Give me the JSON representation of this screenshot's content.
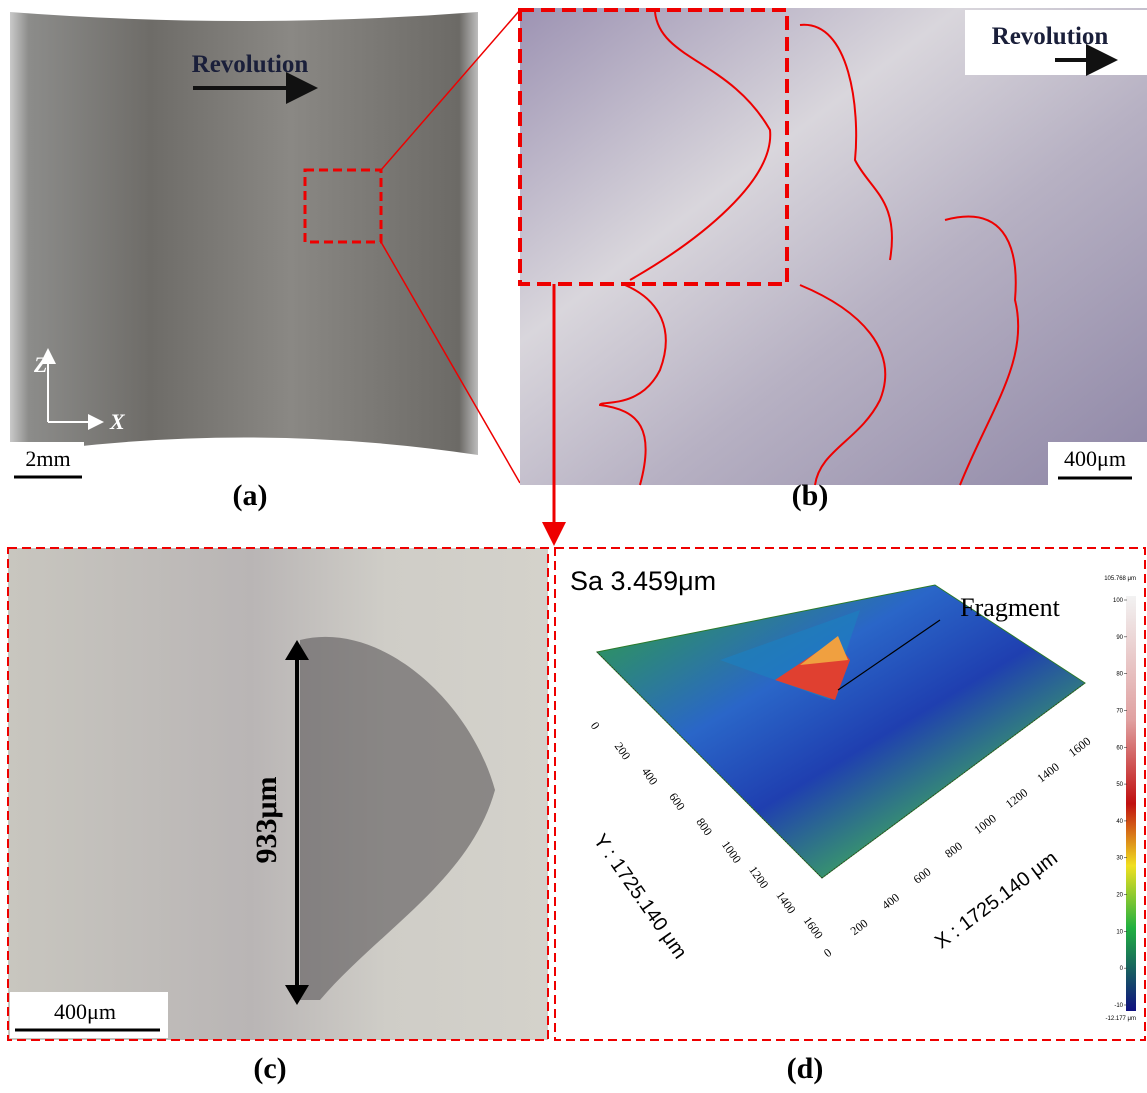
{
  "panel_a": {
    "label": "(a)",
    "arrow_text": "Revolution",
    "axis_z": "Z",
    "axis_x": "X",
    "scale_bar": "2mm"
  },
  "panel_b": {
    "label": "(b)",
    "arrow_text": "Revolution",
    "scale_bar": "400μm"
  },
  "panel_c": {
    "label": "(c)",
    "measurement": "933μm",
    "scale_bar": "400μm"
  },
  "panel_d": {
    "label": "(d)",
    "roughness": "Sa 3.459μm",
    "annotation": "Fragment",
    "x_axis": {
      "title": "X : 1725.140 μm",
      "ticks": [
        0,
        200,
        400,
        600,
        800,
        1000,
        1200,
        1400,
        1600
      ]
    },
    "y_axis": {
      "title": "Y : 1725.140 μm",
      "ticks": [
        0,
        200,
        400,
        600,
        800,
        1000,
        1200,
        1400,
        1600
      ]
    },
    "colorbar": {
      "max_label": "105.768 μm",
      "min_label": "-12.177 μm",
      "ticks": [
        100,
        90,
        80,
        70,
        60,
        50,
        40,
        30,
        20,
        10,
        0,
        -10
      ]
    }
  }
}
